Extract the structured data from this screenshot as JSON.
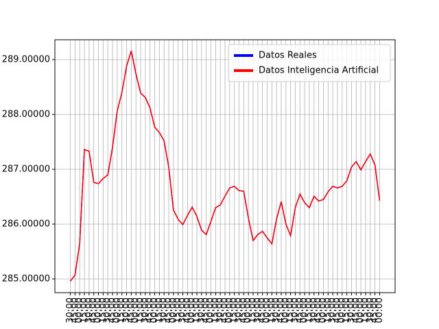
{
  "chart_data": {
    "type": "line",
    "categories": [
      "30:00",
      "45:00",
      "00:00",
      "15:00",
      "30:00",
      "45:00",
      "00:00",
      "15:00",
      "30:00",
      "45:00",
      "00:00",
      "15:00",
      "30:00",
      "45:00",
      "00:00",
      "15:00",
      "30:00",
      "45:00",
      "00:00",
      "15:00",
      "30:00",
      "45:00",
      "00:00",
      "15:00",
      "30:00",
      "45:00",
      "00:00",
      "15:00",
      "30:00",
      "45:00",
      "00:00",
      "15:00",
      "30:00",
      "45:00",
      "00:00",
      "15:00",
      "30:00",
      "45:00",
      "00:00",
      "15:00",
      "30:00",
      "45:00",
      "00:00",
      "15:00",
      "30:00",
      "45:00",
      "00:00",
      "15:00",
      "30:00",
      "45:00",
      "00:00",
      "15:00",
      "30:00",
      "45:00",
      "00:00",
      "15:00",
      "30:00",
      "45:00",
      "00:00",
      "15:00",
      "30:00",
      "45:00",
      "00:00",
      "15:00",
      "30:00",
      "45:00",
      "00:00"
    ],
    "series": [
      {
        "name": "Datos Reales",
        "color": "#0000ff",
        "values": [
          284.96,
          285.07,
          285.65,
          287.36,
          287.33,
          286.76,
          286.74,
          286.83,
          286.9,
          287.4,
          288.06,
          288.4,
          288.88,
          289.16,
          288.74,
          288.39,
          288.31,
          288.12,
          287.77,
          287.67,
          287.52,
          287.04,
          286.26,
          286.09,
          285.99,
          286.16,
          286.31,
          286.14,
          285.89,
          285.81,
          286.05,
          286.3,
          286.35,
          286.51,
          286.66,
          286.69,
          286.61,
          286.6,
          286.11,
          285.7,
          285.81,
          285.87,
          285.75,
          285.64,
          286.09,
          286.41,
          286.0,
          285.79,
          286.3,
          286.55,
          286.39,
          286.3,
          286.51,
          286.42,
          286.45,
          286.59,
          286.69,
          286.66,
          286.69,
          286.79,
          287.04,
          287.14,
          286.99,
          287.14,
          287.28,
          287.08,
          286.43
        ]
      },
      {
        "name": "Datos Inteligencia Artificial",
        "color": "#ff0000",
        "values": [
          284.96,
          285.07,
          285.65,
          287.36,
          287.33,
          286.76,
          286.74,
          286.83,
          286.9,
          287.4,
          288.06,
          288.4,
          288.88,
          289.16,
          288.74,
          288.39,
          288.31,
          288.12,
          287.77,
          287.67,
          287.52,
          287.04,
          286.26,
          286.09,
          285.99,
          286.16,
          286.31,
          286.14,
          285.89,
          285.81,
          286.05,
          286.3,
          286.35,
          286.51,
          286.66,
          286.69,
          286.61,
          286.6,
          286.11,
          285.7,
          285.81,
          285.87,
          285.75,
          285.64,
          286.09,
          286.41,
          286.0,
          285.79,
          286.3,
          286.55,
          286.39,
          286.3,
          286.51,
          286.42,
          286.45,
          286.59,
          286.69,
          286.66,
          286.69,
          286.79,
          287.04,
          287.14,
          286.99,
          287.14,
          287.28,
          287.08,
          286.43
        ]
      }
    ],
    "ylim": [
      284.75,
      289.3625
    ],
    "yticks": [
      {
        "value": 285,
        "label": "285.00000"
      },
      {
        "value": 286,
        "label": "286.00000"
      },
      {
        "value": 287,
        "label": "287.00000"
      },
      {
        "value": 288,
        "label": "288.00000"
      },
      {
        "value": 289,
        "label": "289.00000"
      }
    ],
    "grid": true,
    "legend": "upper right"
  }
}
